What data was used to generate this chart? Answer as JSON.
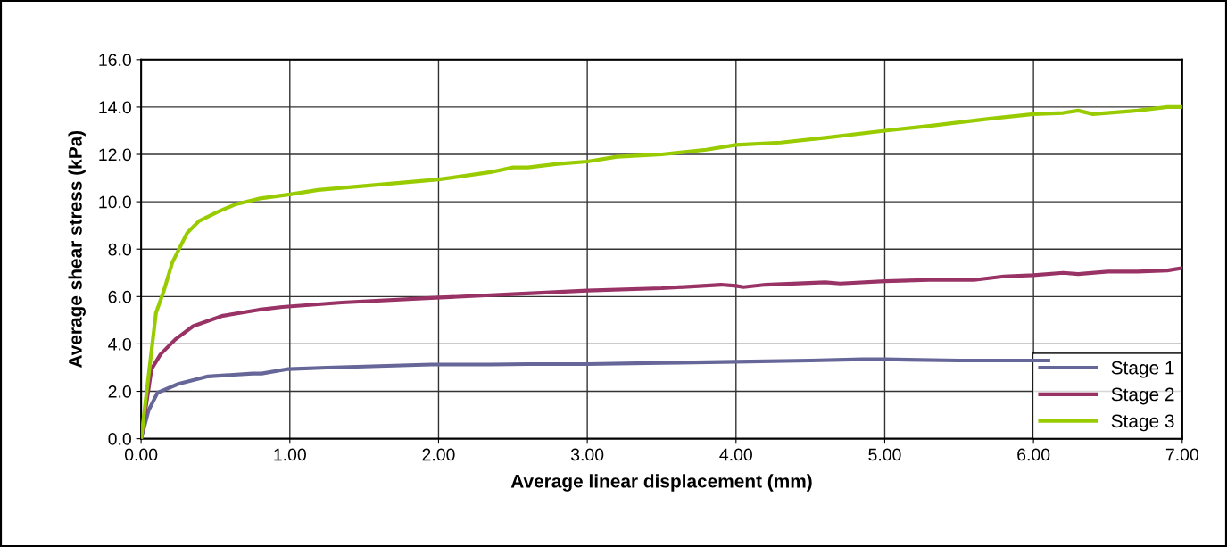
{
  "chart_data": {
    "type": "line",
    "xlabel": "Average linear displacement (mm)",
    "ylabel": "Average shear stress (kPa)",
    "xlim": [
      0,
      7
    ],
    "ylim": [
      0,
      16
    ],
    "xticks": [
      {
        "value": 0,
        "label": "0.00"
      },
      {
        "value": 1,
        "label": "1.00"
      },
      {
        "value": 2,
        "label": "2.00"
      },
      {
        "value": 3,
        "label": "3.00"
      },
      {
        "value": 4,
        "label": "4.00"
      },
      {
        "value": 5,
        "label": "5.00"
      },
      {
        "value": 6,
        "label": "6.00"
      },
      {
        "value": 7,
        "label": "7.00"
      }
    ],
    "yticks": [
      {
        "value": 0,
        "label": "0.0"
      },
      {
        "value": 2,
        "label": "2.0"
      },
      {
        "value": 4,
        "label": "4.0"
      },
      {
        "value": 6,
        "label": "6.0"
      },
      {
        "value": 8,
        "label": "8.0"
      },
      {
        "value": 10,
        "label": "10.0"
      },
      {
        "value": 12,
        "label": "12.0"
      },
      {
        "value": 14,
        "label": "14.0"
      },
      {
        "value": 16,
        "label": "16.0"
      }
    ],
    "grid": true,
    "legend": "bottom right",
    "marker": "none",
    "line_style": "solid",
    "series": [
      {
        "name": "Stage 1",
        "color": "#666699",
        "x": [
          0,
          0.05,
          0.11,
          0.25,
          0.45,
          0.75,
          0.81,
          0.99,
          1.25,
          1.95,
          2.35,
          2.6,
          3.0,
          3.5,
          4.0,
          4.5,
          4.85,
          5.0,
          5.5,
          6.1
        ],
        "values": [
          0,
          1.19,
          1.94,
          2.31,
          2.63,
          2.75,
          2.75,
          2.94,
          3.0,
          3.13,
          3.13,
          3.15,
          3.15,
          3.2,
          3.25,
          3.3,
          3.35,
          3.35,
          3.3,
          3.3
        ]
      },
      {
        "name": "Stage 2",
        "color": "#993366",
        "x": [
          0,
          0.07,
          0.13,
          0.23,
          0.35,
          0.55,
          0.79,
          0.95,
          1.35,
          1.95,
          2.35,
          2.5,
          3.0,
          3.5,
          3.9,
          4.0,
          4.05,
          4.2,
          4.6,
          4.7,
          5.0,
          5.3,
          5.6,
          5.8,
          6.0,
          6.2,
          6.3,
          6.5,
          6.7,
          6.9,
          7.0
        ],
        "values": [
          0,
          2.94,
          3.56,
          4.19,
          4.75,
          5.19,
          5.44,
          5.56,
          5.75,
          5.94,
          6.06,
          6.1,
          6.25,
          6.35,
          6.5,
          6.45,
          6.4,
          6.5,
          6.6,
          6.55,
          6.65,
          6.7,
          6.7,
          6.85,
          6.9,
          7.0,
          6.95,
          7.05,
          7.05,
          7.1,
          7.2
        ]
      },
      {
        "name": "Stage 3",
        "color": "#99cc00",
        "x": [
          0,
          0.1,
          0.15,
          0.21,
          0.31,
          0.39,
          0.51,
          0.63,
          0.79,
          1.0,
          1.19,
          2.0,
          2.35,
          2.5,
          2.6,
          2.8,
          3.0,
          3.2,
          3.5,
          3.8,
          4.0,
          4.3,
          4.6,
          5.0,
          5.3,
          5.7,
          6.0,
          6.2,
          6.3,
          6.4,
          6.7,
          6.9,
          7.0
        ],
        "values": [
          0,
          5.31,
          6.19,
          7.44,
          8.69,
          9.19,
          9.56,
          9.88,
          10.13,
          10.31,
          10.5,
          10.94,
          11.25,
          11.45,
          11.45,
          11.6,
          11.7,
          11.9,
          12.0,
          12.2,
          12.4,
          12.5,
          12.7,
          13.0,
          13.2,
          13.5,
          13.7,
          13.75,
          13.85,
          13.7,
          13.85,
          14.0,
          14.0
        ]
      }
    ]
  }
}
